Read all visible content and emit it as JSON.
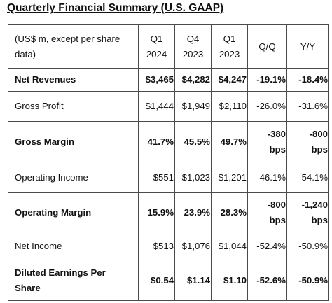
{
  "title": "Quarterly Financial Summary (U.S. GAAP)",
  "header": {
    "label_line1": "(US$ m, except per share",
    "label_line2": "data)",
    "columns": [
      {
        "line1": "Q1",
        "line2": "2024"
      },
      {
        "line1": "Q4",
        "line2": "2023"
      },
      {
        "line1": "Q1",
        "line2": "2023"
      },
      {
        "line1": "Q/Q",
        "line2": ""
      },
      {
        "line1": "Y/Y",
        "line2": ""
      }
    ]
  },
  "rows": [
    {
      "label": "Net Revenues",
      "bold": true,
      "values": [
        "$3,465",
        "$4,282",
        "$4,247",
        "-19.1%",
        "-18.4%"
      ]
    },
    {
      "label": "Gross Profit",
      "bold": false,
      "values": [
        "$1,444",
        "$1,949",
        "$2,110",
        "-26.0%",
        "-31.6%"
      ]
    },
    {
      "label": "Gross Margin",
      "bold": true,
      "values": [
        "41.7%",
        "45.5%",
        "49.7%"
      ],
      "qq": [
        "-380",
        "bps"
      ],
      "yy": [
        "-800",
        "bps"
      ]
    },
    {
      "label": "Operating Income",
      "bold": false,
      "values": [
        "$551",
        "$1,023",
        "$1,201",
        "-46.1%",
        "-54.1%"
      ]
    },
    {
      "label": "Operating Margin",
      "bold": true,
      "values": [
        "15.9%",
        "23.9%",
        "28.3%"
      ],
      "qq": [
        "-800",
        "bps"
      ],
      "yy": [
        "-1,240",
        "bps"
      ]
    },
    {
      "label": "Net Income",
      "bold": false,
      "values": [
        "$513",
        "$1,076",
        "$1,044",
        "-52.4%",
        "-50.9%"
      ]
    },
    {
      "label_line1": "Diluted Earnings Per",
      "label_line2": "Share",
      "bold": true,
      "values": [
        "$0.54",
        "$1.14",
        "$1.10",
        "-52.6%",
        "-50.9%"
      ]
    }
  ]
}
